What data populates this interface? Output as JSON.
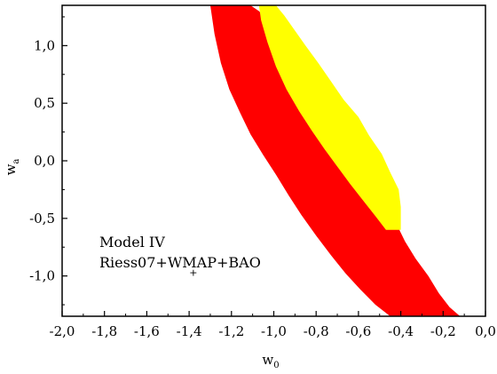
{
  "chart_data": {
    "type": "contour",
    "title": "",
    "xlabel": "w",
    "xlabel_sub": "0",
    "ylabel": "w",
    "ylabel_sub": "a",
    "xlim": [
      -2.0,
      0.0
    ],
    "ylim": [
      -1.35,
      1.35
    ],
    "xticks": [
      -2.0,
      -1.8,
      -1.6,
      -1.4,
      -1.2,
      -1.0,
      -0.8,
      -0.6,
      -0.4,
      -0.2,
      0.0
    ],
    "xtick_labels": [
      "-2,0",
      "-1,8",
      "-1,6",
      "-1,4",
      "-1,2",
      "-1,0",
      "-0,8",
      "-0,6",
      "-0,4",
      "-0,2",
      "0,0"
    ],
    "yticks": [
      -1.0,
      -0.5,
      0.0,
      0.5,
      1.0
    ],
    "ytick_labels": [
      "-1,0",
      "-0,5",
      "0,0",
      "0,5",
      "1,0"
    ],
    "grid": false,
    "annotations": [
      "Model IV",
      "Riess07+WMAP+BAO"
    ],
    "best_fit_marker": "+",
    "best_fit_point": [
      -1.38,
      -0.97
    ],
    "colors": {
      "outer": "#ff0000",
      "inner": "#ffff00",
      "axes": "#000000"
    },
    "regions": [
      {
        "level": "2-sigma",
        "color": "#ff0000",
        "points": [
          [
            -1.3,
            1.35
          ],
          [
            -1.11,
            1.35
          ],
          [
            -1.07,
            1.3
          ],
          [
            -1.03,
            1.22
          ],
          [
            -0.98,
            1.12
          ],
          [
            -0.93,
            1.0
          ],
          [
            -0.88,
            0.87
          ],
          [
            -0.82,
            0.72
          ],
          [
            -0.76,
            0.57
          ],
          [
            -0.7,
            0.42
          ],
          [
            -0.64,
            0.27
          ],
          [
            -0.58,
            0.1
          ],
          [
            -0.53,
            -0.07
          ],
          [
            -0.49,
            -0.23
          ],
          [
            -0.45,
            -0.4
          ],
          [
            -0.42,
            -0.55
          ],
          [
            -0.38,
            -0.7
          ],
          [
            -0.33,
            -0.85
          ],
          [
            -0.27,
            -1.0
          ],
          [
            -0.22,
            -1.15
          ],
          [
            -0.17,
            -1.27
          ],
          [
            -0.12,
            -1.35
          ],
          [
            -0.45,
            -1.35
          ],
          [
            -0.52,
            -1.25
          ],
          [
            -0.59,
            -1.12
          ],
          [
            -0.66,
            -0.98
          ],
          [
            -0.73,
            -0.82
          ],
          [
            -0.8,
            -0.65
          ],
          [
            -0.87,
            -0.47
          ],
          [
            -0.93,
            -0.3
          ],
          [
            -0.99,
            -0.12
          ],
          [
            -1.05,
            0.05
          ],
          [
            -1.11,
            0.23
          ],
          [
            -1.16,
            0.42
          ],
          [
            -1.21,
            0.62
          ],
          [
            -1.25,
            0.85
          ],
          [
            -1.28,
            1.1
          ]
        ]
      },
      {
        "level": "1-sigma",
        "color": "#ffff00",
        "points": [
          [
            -1.07,
            1.35
          ],
          [
            -0.99,
            1.35
          ],
          [
            -0.95,
            1.26
          ],
          [
            -0.9,
            1.13
          ],
          [
            -0.85,
            1.0
          ],
          [
            -0.79,
            0.85
          ],
          [
            -0.73,
            0.69
          ],
          [
            -0.67,
            0.53
          ],
          [
            -0.6,
            0.38
          ],
          [
            -0.55,
            0.22
          ],
          [
            -0.49,
            0.06
          ],
          [
            -0.45,
            -0.1
          ],
          [
            -0.41,
            -0.25
          ],
          [
            -0.4,
            -0.4
          ],
          [
            -0.4,
            -0.6
          ],
          [
            -0.47,
            -0.6
          ],
          [
            -0.52,
            -0.48
          ],
          [
            -0.58,
            -0.34
          ],
          [
            -0.64,
            -0.2
          ],
          [
            -0.7,
            -0.05
          ],
          [
            -0.76,
            0.1
          ],
          [
            -0.82,
            0.26
          ],
          [
            -0.88,
            0.43
          ],
          [
            -0.94,
            0.62
          ],
          [
            -0.99,
            0.82
          ],
          [
            -1.03,
            1.03
          ],
          [
            -1.06,
            1.22
          ]
        ]
      }
    ]
  }
}
